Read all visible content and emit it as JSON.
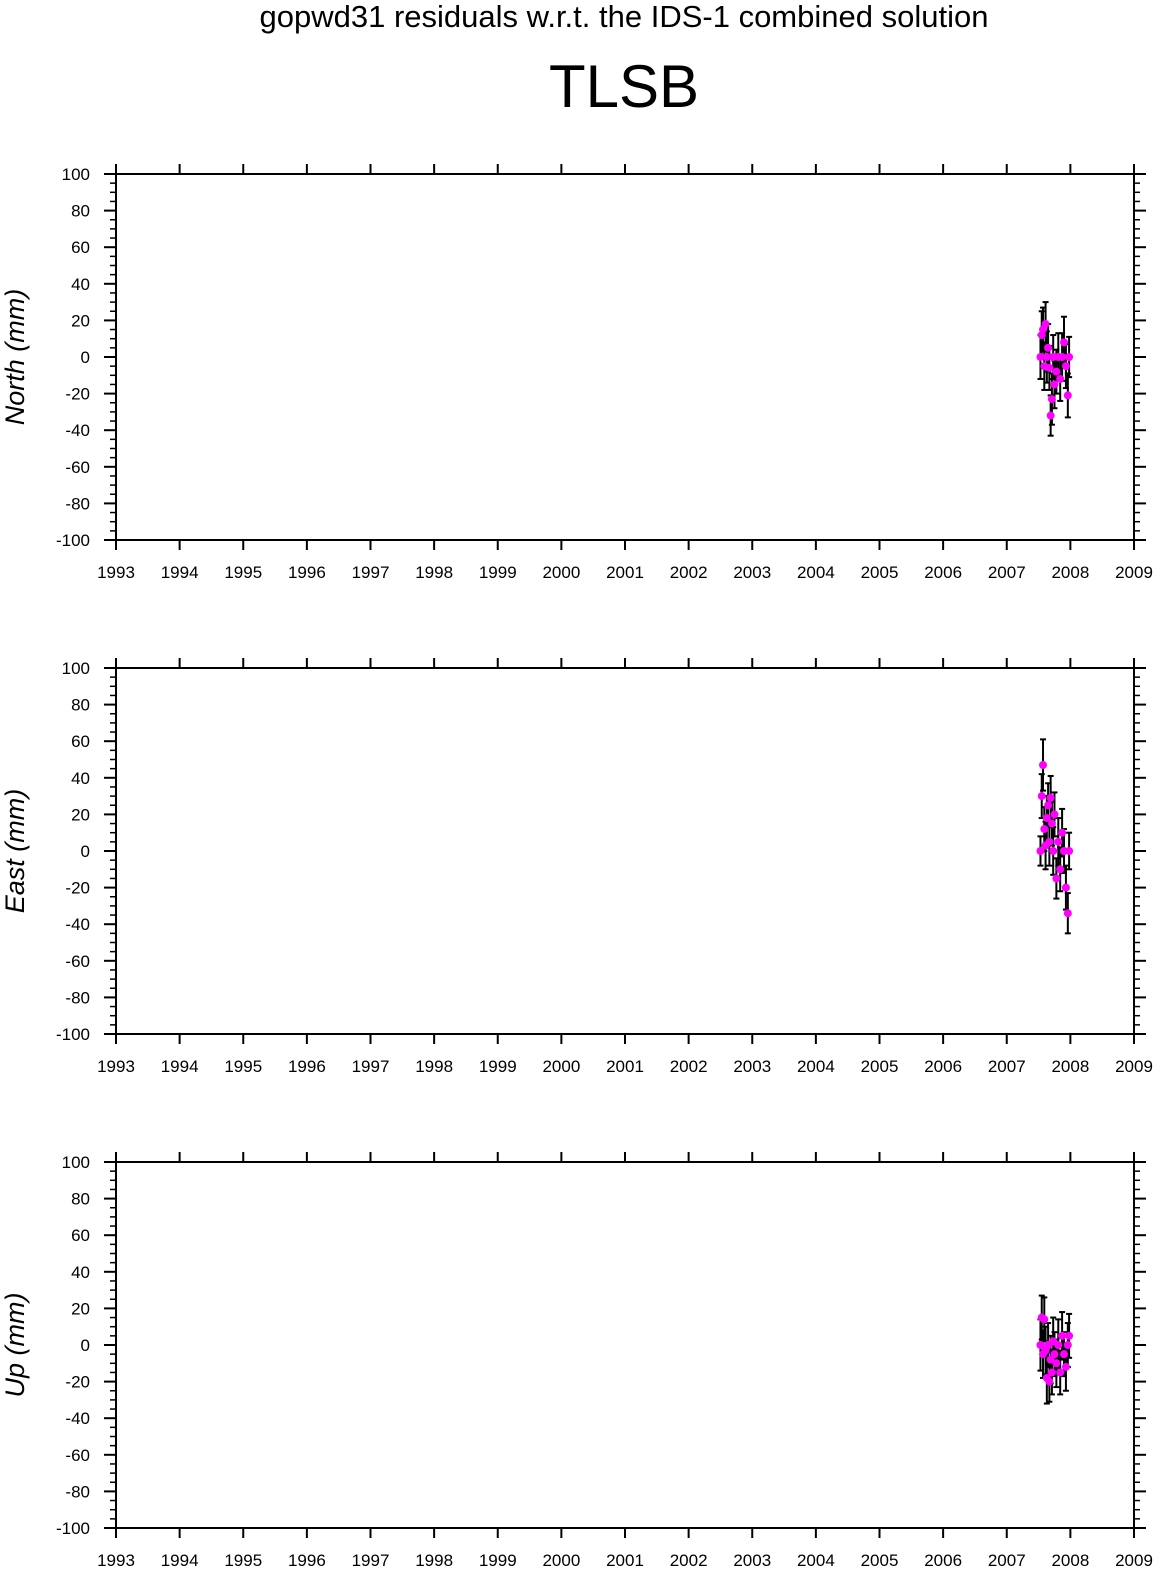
{
  "header": {
    "title": "gopwd31 residuals w.r.t. the IDS-1 combined solution",
    "station": "TLSB"
  },
  "colors": {
    "point": "#ff00ff",
    "errorbar": "#000000",
    "axis": "#000000",
    "background": "#ffffff"
  },
  "chart_data": [
    {
      "type": "scatter",
      "title": "",
      "xlabel": "",
      "ylabel": "North (mm)",
      "xlim": [
        1993,
        2009
      ],
      "ylim": [
        -100,
        100
      ],
      "xticks": [
        "1993",
        "1994",
        "1995",
        "1996",
        "1997",
        "1998",
        "1999",
        "2000",
        "2001",
        "2002",
        "2003",
        "2004",
        "2005",
        "2006",
        "2007",
        "2008",
        "2009"
      ],
      "yticks": [
        "100",
        "80",
        "60",
        "40",
        "20",
        "0",
        "-20",
        "-40",
        "-60",
        "-80",
        "-100"
      ],
      "grid": false,
      "legend": "none",
      "error_bars": true,
      "points": [
        {
          "x": 2007.53,
          "y": 0,
          "err": 12
        },
        {
          "x": 2007.55,
          "y": 12,
          "err": 13
        },
        {
          "x": 2007.57,
          "y": 15,
          "err": 12
        },
        {
          "x": 2007.59,
          "y": -5,
          "err": 13
        },
        {
          "x": 2007.61,
          "y": 18,
          "err": 12
        },
        {
          "x": 2007.63,
          "y": 0,
          "err": 14
        },
        {
          "x": 2007.65,
          "y": 5,
          "err": 13
        },
        {
          "x": 2007.67,
          "y": -6,
          "err": 12
        },
        {
          "x": 2007.69,
          "y": -32,
          "err": 11
        },
        {
          "x": 2007.71,
          "y": -23,
          "err": 14
        },
        {
          "x": 2007.73,
          "y": 0,
          "err": 12
        },
        {
          "x": 2007.75,
          "y": -15,
          "err": 13
        },
        {
          "x": 2007.78,
          "y": -8,
          "err": 12
        },
        {
          "x": 2007.81,
          "y": 0,
          "err": 13
        },
        {
          "x": 2007.84,
          "y": -12,
          "err": 12
        },
        {
          "x": 2007.87,
          "y": 0,
          "err": 13
        },
        {
          "x": 2007.9,
          "y": 8,
          "err": 14
        },
        {
          "x": 2007.93,
          "y": -5,
          "err": 12
        },
        {
          "x": 2007.96,
          "y": -21,
          "err": 12
        },
        {
          "x": 2007.98,
          "y": 0,
          "err": 11
        }
      ]
    },
    {
      "type": "scatter",
      "title": "",
      "xlabel": "",
      "ylabel": "East (mm)",
      "xlim": [
        1993,
        2009
      ],
      "ylim": [
        -100,
        100
      ],
      "xticks": [
        "1993",
        "1994",
        "1995",
        "1996",
        "1997",
        "1998",
        "1999",
        "2000",
        "2001",
        "2002",
        "2003",
        "2004",
        "2005",
        "2006",
        "2007",
        "2008",
        "2009"
      ],
      "yticks": [
        "100",
        "80",
        "60",
        "40",
        "20",
        "0",
        "-20",
        "-40",
        "-60",
        "-80",
        "-100"
      ],
      "grid": false,
      "legend": "none",
      "error_bars": true,
      "points": [
        {
          "x": 2007.53,
          "y": 0,
          "err": 8
        },
        {
          "x": 2007.55,
          "y": 30,
          "err": 12
        },
        {
          "x": 2007.57,
          "y": 47,
          "err": 14
        },
        {
          "x": 2007.59,
          "y": 12,
          "err": 12
        },
        {
          "x": 2007.61,
          "y": 3,
          "err": 13
        },
        {
          "x": 2007.63,
          "y": 18,
          "err": 12
        },
        {
          "x": 2007.65,
          "y": 25,
          "err": 12
        },
        {
          "x": 2007.67,
          "y": 5,
          "err": 13
        },
        {
          "x": 2007.69,
          "y": 29,
          "err": 12
        },
        {
          "x": 2007.71,
          "y": 15,
          "err": 12
        },
        {
          "x": 2007.73,
          "y": 0,
          "err": 13
        },
        {
          "x": 2007.75,
          "y": 20,
          "err": 12
        },
        {
          "x": 2007.78,
          "y": -15,
          "err": 11
        },
        {
          "x": 2007.81,
          "y": 5,
          "err": 13
        },
        {
          "x": 2007.84,
          "y": -10,
          "err": 12
        },
        {
          "x": 2007.87,
          "y": 10,
          "err": 13
        },
        {
          "x": 2007.9,
          "y": 0,
          "err": 12
        },
        {
          "x": 2007.93,
          "y": -20,
          "err": 12
        },
        {
          "x": 2007.96,
          "y": -34,
          "err": 11
        },
        {
          "x": 2007.98,
          "y": 0,
          "err": 10
        }
      ]
    },
    {
      "type": "scatter",
      "title": "",
      "xlabel": "",
      "ylabel": "Up (mm)",
      "xlim": [
        1993,
        2009
      ],
      "ylim": [
        -100,
        100
      ],
      "xticks": [
        "1993",
        "1994",
        "1995",
        "1996",
        "1997",
        "1998",
        "1999",
        "2000",
        "2001",
        "2002",
        "2003",
        "2004",
        "2005",
        "2006",
        "2007",
        "2008",
        "2009"
      ],
      "yticks": [
        "100",
        "80",
        "60",
        "40",
        "20",
        "0",
        "-20",
        "-40",
        "-60",
        "-80",
        "-100"
      ],
      "grid": false,
      "legend": "none",
      "error_bars": true,
      "points": [
        {
          "x": 2007.53,
          "y": 0,
          "err": 14
        },
        {
          "x": 2007.55,
          "y": 15,
          "err": 12
        },
        {
          "x": 2007.57,
          "y": -5,
          "err": 13
        },
        {
          "x": 2007.59,
          "y": 14,
          "err": 12
        },
        {
          "x": 2007.61,
          "y": -3,
          "err": 13
        },
        {
          "x": 2007.63,
          "y": -18,
          "err": 14
        },
        {
          "x": 2007.65,
          "y": 0,
          "err": 12
        },
        {
          "x": 2007.67,
          "y": -20,
          "err": 11
        },
        {
          "x": 2007.69,
          "y": -8,
          "err": 13
        },
        {
          "x": 2007.71,
          "y": -15,
          "err": 12
        },
        {
          "x": 2007.73,
          "y": 2,
          "err": 13
        },
        {
          "x": 2007.75,
          "y": -5,
          "err": 12
        },
        {
          "x": 2007.78,
          "y": -10,
          "err": 13
        },
        {
          "x": 2007.81,
          "y": 0,
          "err": 14
        },
        {
          "x": 2007.84,
          "y": -15,
          "err": 12
        },
        {
          "x": 2007.87,
          "y": 5,
          "err": 13
        },
        {
          "x": 2007.9,
          "y": -5,
          "err": 12
        },
        {
          "x": 2007.93,
          "y": -12,
          "err": 13
        },
        {
          "x": 2007.96,
          "y": 0,
          "err": 12
        },
        {
          "x": 2007.98,
          "y": 5,
          "err": 12
        }
      ]
    }
  ]
}
